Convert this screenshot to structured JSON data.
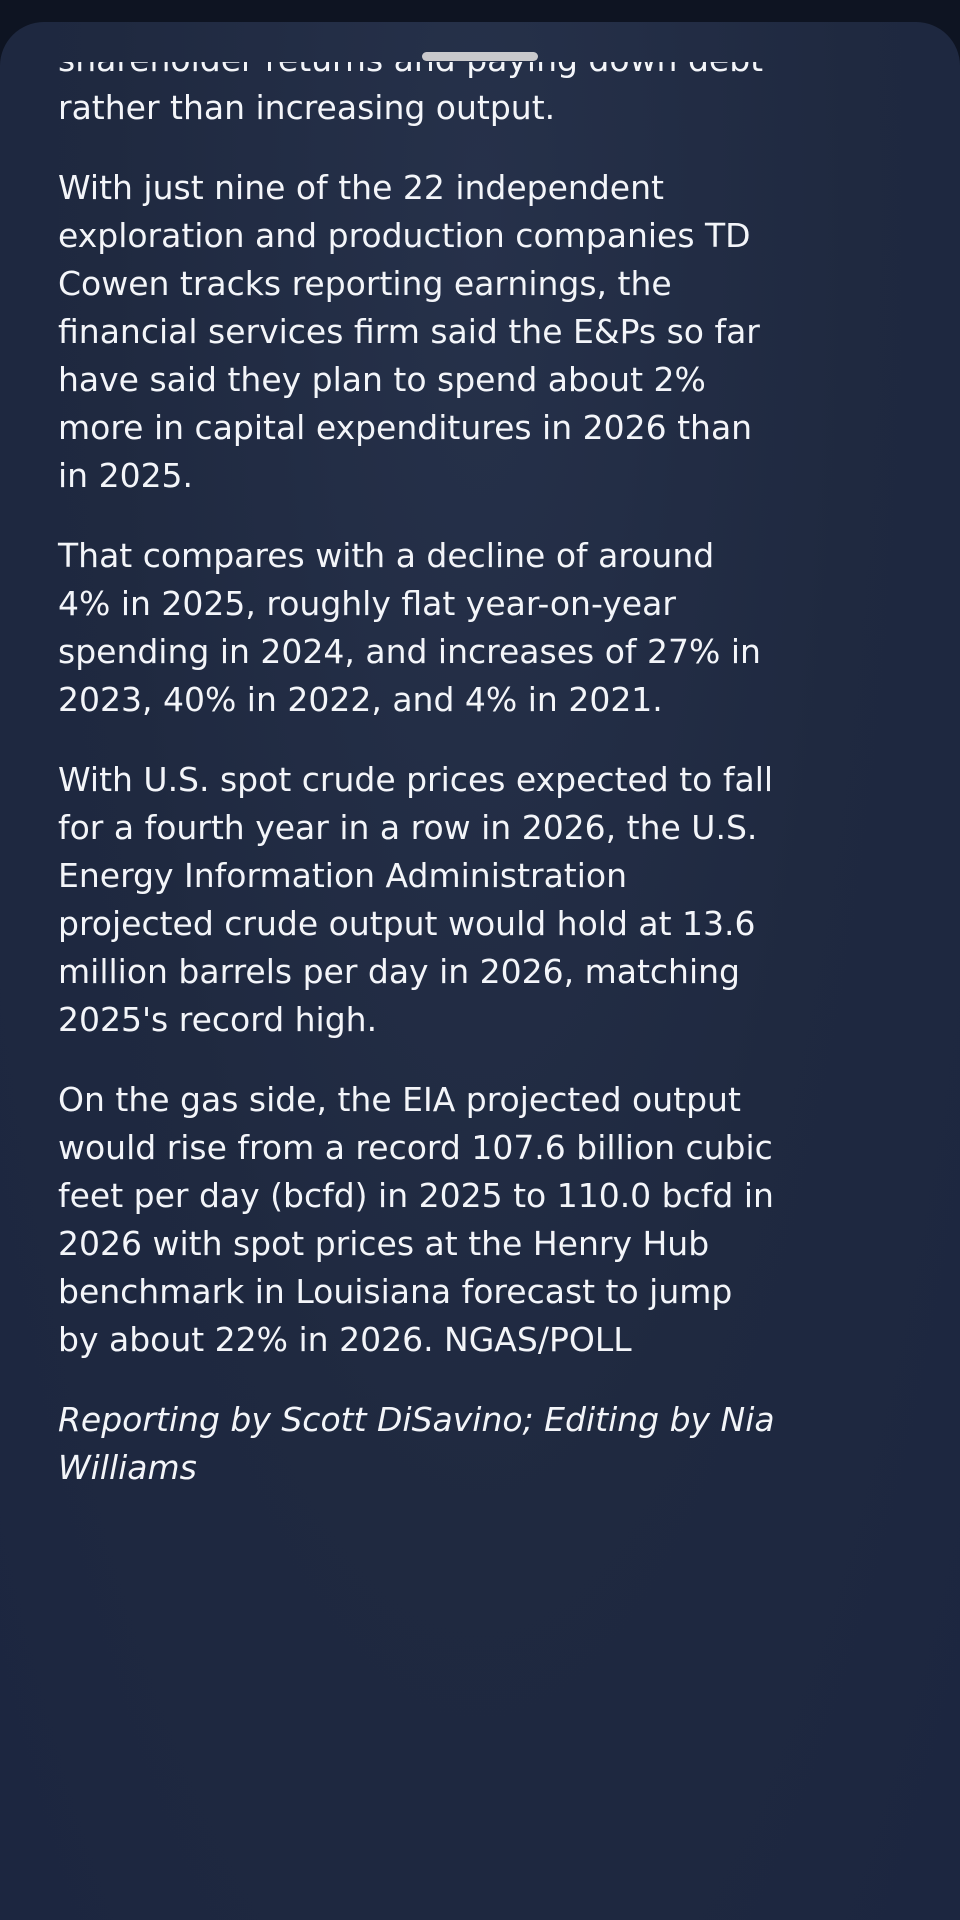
{
  "article": {
    "paragraphs": [
      [
        "shareholder returns and paying down debt",
        "rather than increasing output."
      ],
      [
        "With just nine of the 22 independent",
        "exploration and production companies TD",
        "Cowen tracks reporting earnings, the",
        "financial services firm said the E&Ps so far",
        "have said they plan to spend about 2%",
        "more in capital expenditures in 2026 than",
        "in 2025."
      ],
      [
        "That compares with a decline of around",
        "4% in 2025, roughly flat year-on-year",
        "spending in 2024, and increases of 27% in",
        "2023, 40% in 2022, and 4% in 2021."
      ],
      [
        "With U.S. spot crude prices expected to fall",
        "for a fourth year in a row in 2026, the U.S.",
        "Energy Information Administration",
        "projected crude output would hold at 13.6",
        "million barrels per day in 2026, matching",
        "2025's record high."
      ],
      [
        "On the gas side, the EIA projected output",
        "would rise from a record 107.6 billion cubic",
        "feet per day (bcfd) in 2025 to 110.0 bcfd in",
        "2026 with spot prices at the Henry Hub",
        "benchmark in Louisiana forecast to jump",
        "by about 22% in 2026. NGAS/POLL"
      ]
    ],
    "credit": [
      "Reporting by Scott DiSavino; Editing by Nia",
      "Williams"
    ]
  }
}
